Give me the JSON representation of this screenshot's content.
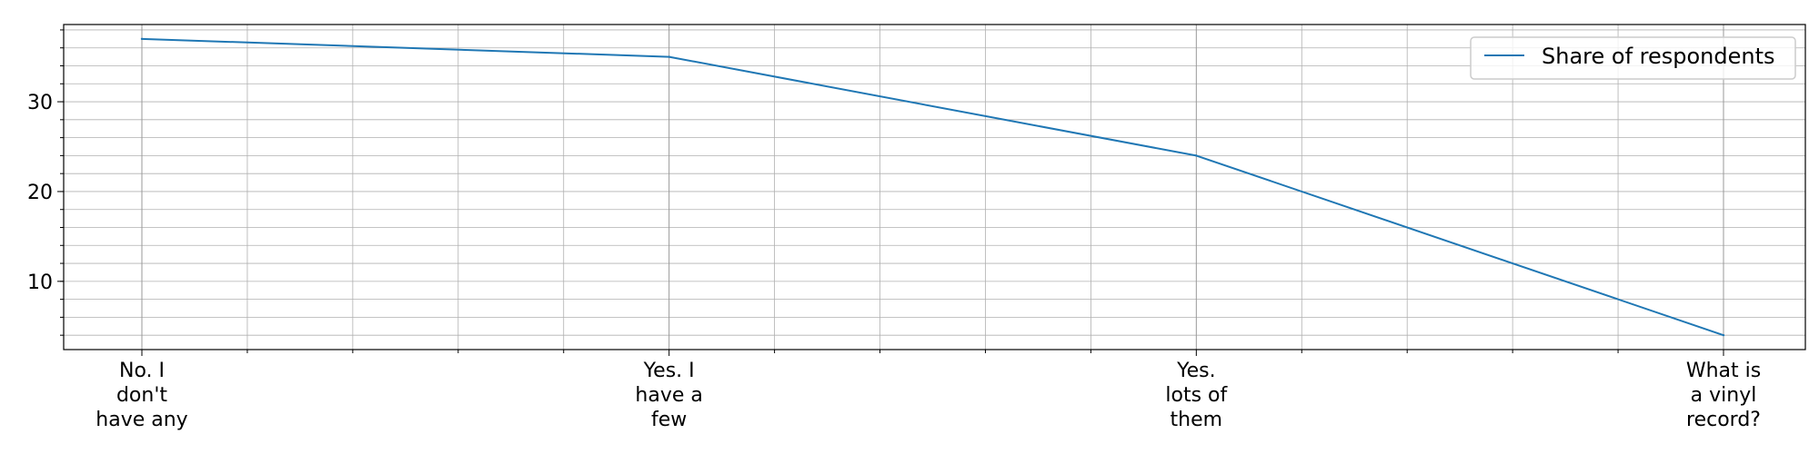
{
  "chart_data": {
    "type": "line",
    "categories": [
      [
        "No. I",
        "don't",
        "have any"
      ],
      [
        "Yes. I",
        "have a",
        "few"
      ],
      [
        "Yes.",
        "lots of",
        "them"
      ],
      [
        "What is",
        "a vinyl",
        "record?"
      ]
    ],
    "series": [
      {
        "name": "Share of respondents",
        "values": [
          37,
          35,
          24,
          4
        ],
        "color": "#1f77b4"
      }
    ],
    "yticks": [
      "10",
      "20",
      "30"
    ],
    "ylim": [
      2.4,
      38.6
    ],
    "y_minor_step": 2,
    "x_minor_per_interval": 5,
    "grid": true,
    "legend": "top-right",
    "xlabel": "",
    "ylabel": ""
  }
}
